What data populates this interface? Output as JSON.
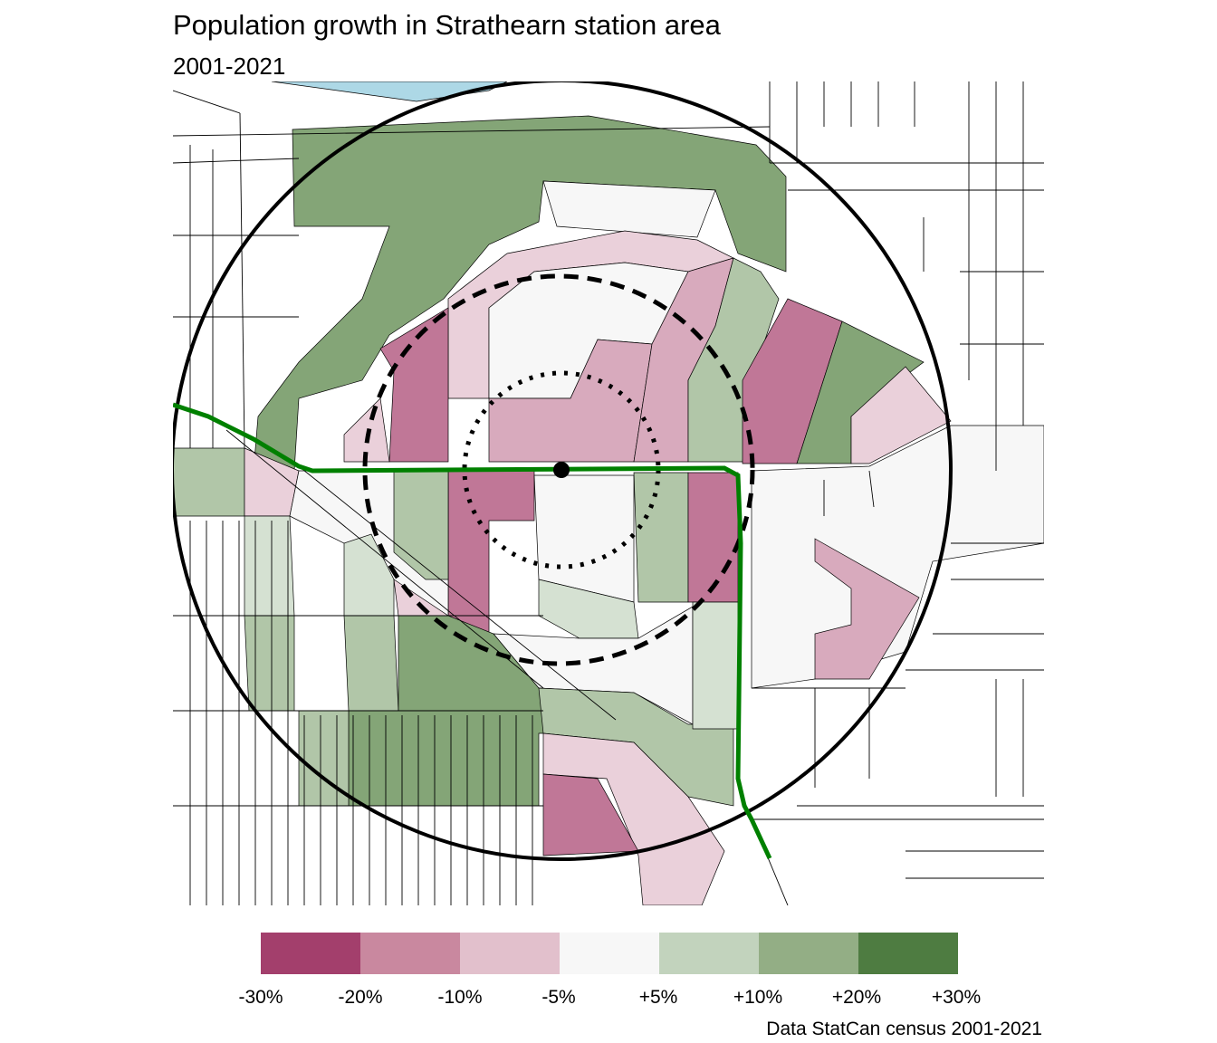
{
  "title": "Population growth in Strathearn station area",
  "subtitle": "2001-2021",
  "legend": {
    "items": [
      {
        "label": "-30%",
        "color": "#a33f6c"
      },
      {
        "label": "-20%",
        "color": "#c9889f"
      },
      {
        "label": "-10%",
        "color": "#e2c0cc"
      },
      {
        "label": "-5%",
        "color": "#f7f7f7"
      },
      {
        "label": "+5%",
        "color": "#c2d3bd"
      },
      {
        "label": "+10%",
        "color": "#93ae85"
      },
      {
        "label": "+20%",
        "color": "#4e7c41"
      },
      {
        "label": "+30%",
        "color": ""
      }
    ]
  },
  "caption": "Data StatCan census 2001-2021",
  "map": {
    "water_color": "#add8e6",
    "transit_line_color": "#008000",
    "station_marker": "station-dot"
  }
}
